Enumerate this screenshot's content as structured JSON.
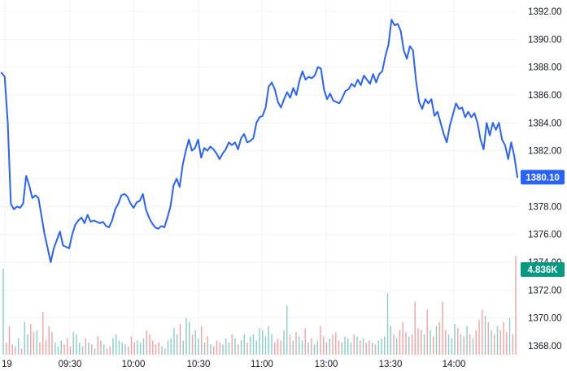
{
  "chart_data": {
    "type": "line",
    "title": "",
    "xlabel": "",
    "ylabel": "",
    "x_ticks": [
      "19",
      "09:30",
      "10:00",
      "10:30",
      "11:00",
      "13:00",
      "13:30",
      "14:00"
    ],
    "y_ticks": [
      1368,
      1370,
      1372,
      1374,
      1376,
      1378,
      1380,
      1382,
      1384,
      1386,
      1388,
      1390,
      1392
    ],
    "y_tick_labels": [
      "1368.00",
      "1370.00",
      "1372.00",
      "1374.00",
      "1376.00",
      "1378.00",
      "1380.00",
      "1382.00",
      "1384.00",
      "1386.00",
      "1388.00",
      "1390.00",
      "1392.00"
    ],
    "ylim": [
      1367.4,
      1392.8
    ],
    "grid": true,
    "series": [
      {
        "values": [
          1387.6,
          1387.3,
          1384.0,
          1378.2,
          1377.8,
          1378.0,
          1377.9,
          1378.2,
          1380.2,
          1379.5,
          1378.6,
          1378.8,
          1378.6,
          1377.3,
          1376.0,
          1375.0,
          1374.0,
          1375.0,
          1375.6,
          1376.2,
          1375.2,
          1375.1,
          1375.0,
          1376.0,
          1376.7,
          1377.0,
          1377.2,
          1376.8,
          1377.4,
          1376.9,
          1377.0,
          1376.9,
          1376.8,
          1376.9,
          1376.6,
          1376.5,
          1377.0,
          1377.8,
          1378.2,
          1378.8,
          1378.9,
          1378.7,
          1378.2,
          1377.9,
          1378.3,
          1378.4,
          1378.9,
          1377.8,
          1377.2,
          1376.8,
          1376.5,
          1376.4,
          1376.6,
          1376.5,
          1377.2,
          1378.0,
          1379.5,
          1380.0,
          1379.4,
          1381.0,
          1382.0,
          1382.8,
          1382.0,
          1382.2,
          1382.8,
          1381.5,
          1382.2,
          1382.0,
          1382.3,
          1382.1,
          1381.8,
          1381.4,
          1381.8,
          1382.1,
          1382.6,
          1382.4,
          1382.6,
          1382.1,
          1382.9,
          1383.2,
          1382.6,
          1382.7,
          1382.9,
          1384.0,
          1384.4,
          1384.5,
          1385.1,
          1386.6,
          1386.9,
          1386.4,
          1385.5,
          1385.1,
          1385.7,
          1386.2,
          1385.8,
          1386.5,
          1386.0,
          1387.0,
          1387.7,
          1387.1,
          1387.3,
          1387.2,
          1387.4,
          1388.0,
          1387.9,
          1386.4,
          1385.7,
          1386.1,
          1385.6,
          1385.5,
          1385.4,
          1385.8,
          1386.3,
          1386.4,
          1386.8,
          1386.6,
          1387.1,
          1386.7,
          1387.4,
          1387.1,
          1386.8,
          1387.5,
          1386.9,
          1387.5,
          1387.7,
          1388.8,
          1389.6,
          1391.4,
          1391.0,
          1391.1,
          1390.6,
          1389.2,
          1388.6,
          1389.5,
          1389.2,
          1387.0,
          1385.5,
          1385.0,
          1385.7,
          1385.4,
          1385.7,
          1384.5,
          1384.8,
          1384.0,
          1383.2,
          1382.6,
          1383.8,
          1384.6,
          1385.4,
          1385.0,
          1385.1,
          1384.4,
          1384.8,
          1384.4,
          1384.7,
          1384.0,
          1382.8,
          1382.1,
          1384.0,
          1383.1,
          1384.0,
          1383.5,
          1384.0,
          1382.8,
          1382.4,
          1381.4,
          1382.6,
          1381.6,
          1380.1
        ],
        "color": "#2962ff"
      }
    ],
    "volume": {
      "values": [
        4.2,
        0.6,
        1.4,
        0.5,
        0.4,
        0.8,
        0.3,
        1.6,
        1.0,
        1.5,
        1.1,
        1.2,
        0.6,
        2.1,
        0.7,
        1.4,
        1.1,
        0.6,
        0.4,
        0.7,
        0.5,
        0.8,
        0.4,
        1.1,
        1.0,
        0.6,
        0.4,
        0.8,
        0.6,
        0.5,
        0.3,
        0.9,
        0.7,
        0.5,
        0.3,
        0.4,
        0.8,
        1.0,
        0.7,
        0.6,
        0.5,
        0.4,
        0.9,
        0.6,
        0.7,
        0.6,
        0.8,
        1.2,
        1.0,
        0.7,
        0.5,
        0.6,
        0.4,
        0.3,
        0.7,
        0.8,
        1.3,
        1.0,
        1.5,
        0.7,
        1.8,
        1.6,
        1.0,
        1.2,
        0.8,
        1.4,
        0.6,
        0.9,
        0.5,
        0.4,
        0.7,
        0.6,
        0.5,
        0.8,
        0.6,
        1.0,
        0.8,
        0.5,
        0.7,
        1.0,
        0.6,
        0.9,
        1.0,
        0.7,
        1.3,
        1.2,
        0.9,
        1.4,
        1.0,
        0.6,
        0.8,
        0.7,
        1.2,
        2.4,
        1.0,
        0.7,
        1.1,
        0.9,
        0.7,
        1.3,
        0.6,
        0.8,
        0.5,
        0.7,
        1.4,
        0.9,
        0.6,
        0.8,
        1.0,
        1.1,
        0.7,
        0.6,
        0.9,
        0.8,
        0.6,
        1.0,
        0.9,
        0.7,
        0.8,
        0.6,
        0.7,
        0.6,
        0.5,
        0.7,
        0.8,
        0.9,
        3.0,
        1.4,
        1.0,
        0.8,
        1.2,
        1.6,
        1.1,
        0.9,
        1.0,
        2.6,
        1.3,
        1.2,
        1.0,
        2.2,
        1.2,
        0.9,
        1.4,
        1.6,
        2.6,
        1.2,
        1.0,
        0.8,
        1.5,
        1.3,
        1.0,
        0.9,
        1.4,
        1.0,
        0.8,
        1.2,
        1.7,
        2.2,
        1.9,
        1.6,
        1.2,
        1.0,
        1.4,
        1.2,
        1.6,
        1.1,
        1.8,
        1.0,
        4.836
      ],
      "last_label": "4.836K",
      "colors": [
        "#26a69a",
        "#ef5350"
      ]
    },
    "last_price_label": "1380.10"
  },
  "colors": {
    "line": "#2962ff",
    "grid": "#f0f3fa",
    "vol_up": "#26a69a",
    "vol_down": "#ef5350",
    "vol_tag": "#089981"
  }
}
